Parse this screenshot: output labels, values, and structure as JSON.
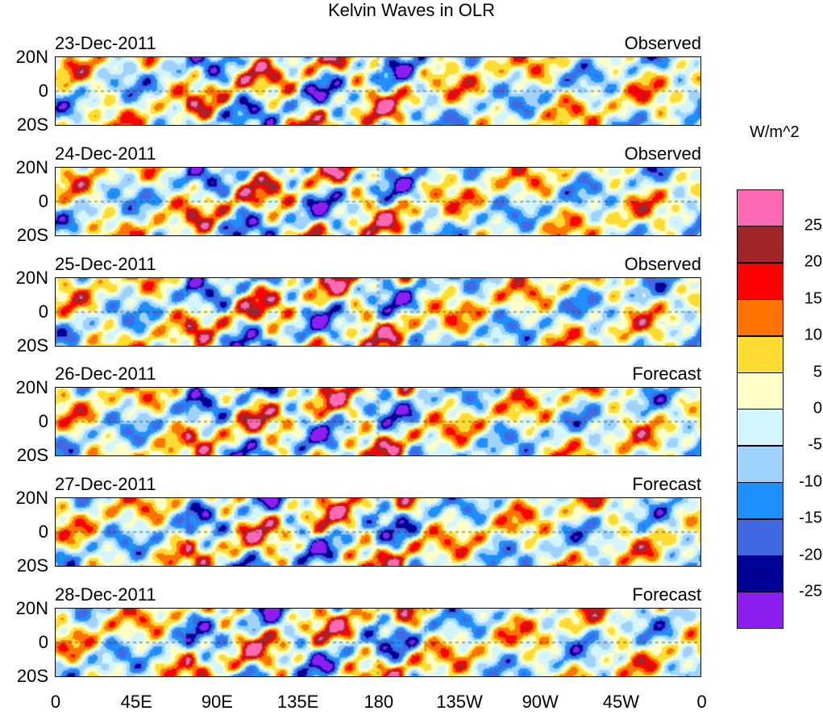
{
  "title": "Kelvin Waves in OLR",
  "chart_data": {
    "type": "heatmap",
    "title": "Kelvin Waves in OLR",
    "panels": [
      {
        "date": "23-Dec-2011",
        "kind": "Observed"
      },
      {
        "date": "24-Dec-2011",
        "kind": "Observed"
      },
      {
        "date": "25-Dec-2011",
        "kind": "Observed"
      },
      {
        "date": "26-Dec-2011",
        "kind": "Forecast"
      },
      {
        "date": "27-Dec-2011",
        "kind": "Forecast"
      },
      {
        "date": "28-Dec-2011",
        "kind": "Forecast"
      }
    ],
    "y_ticks": [
      "20N",
      "0",
      "20S"
    ],
    "x_ticks": [
      "0",
      "45E",
      "90E",
      "135E",
      "180",
      "135W",
      "90W",
      "45W",
      "0"
    ],
    "xlim": [
      0,
      360
    ],
    "ylim": [
      -20,
      20
    ],
    "colorbar": {
      "units": "W/m^2",
      "labels": [
        "25",
        "20",
        "15",
        "10",
        "5",
        "0",
        "-5",
        "-10",
        "-15",
        "-20",
        "-25"
      ],
      "colors": [
        "#ff69b4",
        "#a0262a",
        "#ff0000",
        "#ff7300",
        "#ffdc32",
        "#ffffc8",
        "#d2f5ff",
        "#a0d2ff",
        "#1e8fff",
        "#4169e1",
        "#000096",
        "#8c1ef0"
      ]
    }
  }
}
